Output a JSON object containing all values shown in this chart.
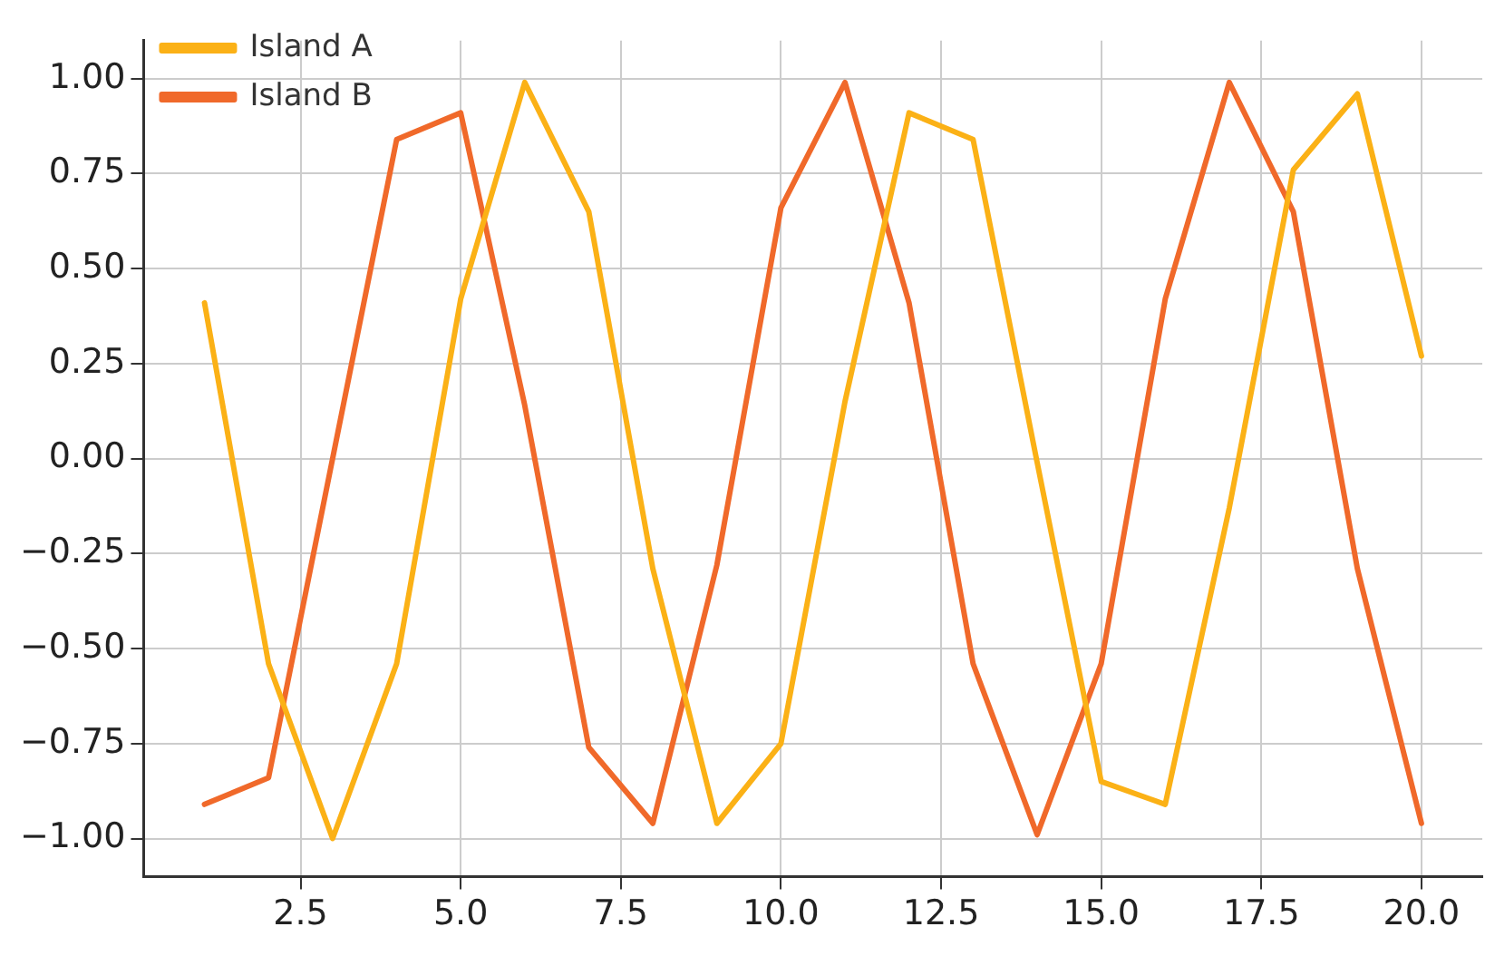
{
  "chart_data": {
    "type": "line",
    "x": [
      1,
      2,
      3,
      4,
      5,
      6,
      7,
      8,
      9,
      10,
      11,
      12,
      13,
      14,
      15,
      16,
      17,
      18,
      19,
      20
    ],
    "series": [
      {
        "name": "Island A",
        "color": "#fbb116",
        "values": [
          0.41,
          -0.54,
          -1.0,
          -0.54,
          0.42,
          0.99,
          0.65,
          -0.29,
          -0.96,
          -0.75,
          0.15,
          0.91,
          0.84,
          -0.01,
          -0.85,
          -0.91,
          -0.13,
          0.76,
          0.96,
          0.27
        ]
      },
      {
        "name": "Island B",
        "color": "#f0692a",
        "values": [
          -0.91,
          -0.84,
          0.0,
          0.84,
          0.91,
          0.14,
          -0.76,
          -0.96,
          -0.28,
          0.66,
          0.99,
          0.41,
          -0.54,
          -0.99,
          -0.54,
          0.42,
          0.99,
          0.65,
          -0.29,
          -0.96
        ]
      }
    ],
    "xlim": [
      0.05,
      20.95
    ],
    "xticks": [
      {
        "value": 2.5,
        "label": "2.5"
      },
      {
        "value": 5,
        "label": "5.0"
      },
      {
        "value": 7.5,
        "label": "7.5"
      },
      {
        "value": 10,
        "label": "10.0"
      },
      {
        "value": 12.5,
        "label": "12.5"
      },
      {
        "value": 15,
        "label": "15.0"
      },
      {
        "value": 17.5,
        "label": "17.5"
      },
      {
        "value": 20,
        "label": "20.0"
      }
    ],
    "ylim": [
      -1.1,
      1.1
    ],
    "yticks": [
      {
        "value": -1,
        "label": "−1.00"
      },
      {
        "value": -0.75,
        "label": "−0.75"
      },
      {
        "value": -0.5,
        "label": "−0.50"
      },
      {
        "value": -0.25,
        "label": "−0.25"
      },
      {
        "value": 0,
        "label": "0.00"
      },
      {
        "value": 0.25,
        "label": "0.25"
      },
      {
        "value": 0.5,
        "label": "0.50"
      },
      {
        "value": 0.75,
        "label": "0.75"
      },
      {
        "value": 1,
        "label": "1.00"
      }
    ],
    "grid": true,
    "legend": "top left",
    "line_style": "solid",
    "marker": "none"
  }
}
